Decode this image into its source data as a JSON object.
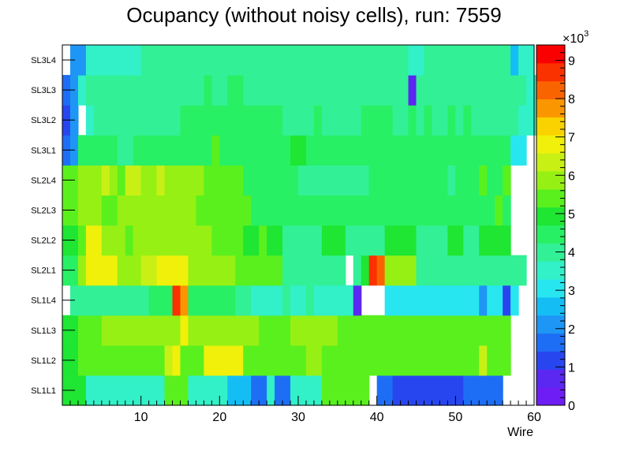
{
  "chart_data": {
    "type": "heatmap",
    "title": "Ocupancy (without noisy cells), run: 7559",
    "xlabel": "Wire",
    "ylabel": "",
    "xlim": [
      0,
      60
    ],
    "x_ticks": [
      10,
      20,
      30,
      40,
      50,
      60
    ],
    "rows": [
      "SL1L1",
      "SL1L2",
      "SL1L3",
      "SL1L4",
      "SL2L1",
      "SL2L2",
      "SL2L3",
      "SL2L4",
      "SL3L1",
      "SL3L2",
      "SL3L3",
      "SL3L4"
    ],
    "colorbar": {
      "min": 0,
      "max": 9400,
      "ticks": [
        0,
        1,
        2,
        3,
        4,
        5,
        6,
        7,
        8,
        9
      ],
      "tick_labels": [
        "0",
        "1",
        "2",
        "3",
        "4",
        "5",
        "6",
        "7",
        "8",
        "9"
      ],
      "exponent_base": "×10",
      "exponent_power": "3"
    },
    "palette": [
      "#6e1ef5",
      "#5a28f0",
      "#2846f0",
      "#1e6ef5",
      "#1e96f5",
      "#14bef5",
      "#28e6f0",
      "#32f0c8",
      "#32f096",
      "#28f064",
      "#1ee632",
      "#5af01e",
      "#96f014",
      "#c8f014",
      "#f0f00a",
      "#fad200",
      "#fa9600",
      "#fa6400",
      "#fa3200",
      "#fa0000"
    ],
    "z": [
      [
        4800,
        4800,
        4800,
        3400,
        3400,
        3400,
        3400,
        3400,
        3400,
        3400,
        3400,
        3400,
        3400,
        5400,
        5400,
        5400,
        3400,
        3400,
        3400,
        3400,
        3400,
        2800,
        2800,
        2800,
        1700,
        1700,
        3400,
        1700,
        1700,
        3400,
        3400,
        3400,
        3400,
        5400,
        5400,
        5400,
        5400,
        5400,
        5400,
        null,
        1700,
        1700,
        1200,
        1200,
        1200,
        1200,
        1200,
        1200,
        1200,
        1200,
        1200,
        1500,
        1500,
        1700,
        1700,
        1700,
        null,
        null,
        null,
        null
      ],
      [
        4800,
        4800,
        5400,
        5400,
        5400,
        5400,
        5400,
        5400,
        5400,
        5400,
        5400,
        5400,
        5400,
        6200,
        6700,
        5400,
        5400,
        5400,
        6700,
        6700,
        6700,
        6700,
        6700,
        5400,
        5400,
        5400,
        5400,
        5400,
        5400,
        5400,
        5400,
        5900,
        5900,
        5400,
        5400,
        5400,
        5400,
        5400,
        5400,
        5400,
        5400,
        5400,
        5400,
        5400,
        5400,
        5400,
        5400,
        5400,
        5400,
        5400,
        5400,
        5400,
        5400,
        6200,
        5400,
        5400,
        5400,
        null,
        null,
        null
      ],
      [
        4800,
        4800,
        5400,
        5400,
        5400,
        5900,
        5900,
        5900,
        5900,
        5900,
        5900,
        5900,
        5900,
        5900,
        5900,
        6900,
        5900,
        5900,
        5900,
        5900,
        5900,
        5900,
        5900,
        5900,
        5900,
        5400,
        5400,
        5400,
        5400,
        5900,
        5900,
        5900,
        5900,
        5900,
        5900,
        5400,
        5400,
        5400,
        5400,
        5400,
        5400,
        5400,
        5400,
        5400,
        5400,
        5400,
        5400,
        5400,
        5400,
        5400,
        5400,
        5400,
        5400,
        5400,
        5400,
        5400,
        5400,
        null,
        null,
        null
      ],
      [
        null,
        4200,
        4200,
        4200,
        4200,
        4200,
        4200,
        4200,
        4200,
        4200,
        4200,
        4600,
        4600,
        4600,
        8700,
        7900,
        4600,
        4600,
        4600,
        4600,
        4600,
        4600,
        4200,
        4200,
        3700,
        3700,
        3700,
        3700,
        4200,
        3700,
        3700,
        4200,
        3700,
        3700,
        3700,
        3700,
        3700,
        800,
        null,
        null,
        null,
        3200,
        3200,
        3200,
        3200,
        3200,
        3200,
        3200,
        3200,
        3200,
        3200,
        3200,
        3200,
        2300,
        3200,
        3200,
        1200,
        3200,
        null,
        null,
        null
      ],
      [
        4600,
        4600,
        5900,
        6900,
        6900,
        6900,
        6900,
        5900,
        5900,
        5900,
        6200,
        6200,
        7000,
        7000,
        7000,
        7000,
        5900,
        5900,
        5900,
        5900,
        5900,
        5900,
        5400,
        5400,
        5400,
        5400,
        5400,
        5400,
        4200,
        4200,
        4200,
        4200,
        4200,
        4200,
        4200,
        4200,
        null,
        4200,
        5100,
        8800,
        8300,
        5900,
        5900,
        5900,
        5900,
        4200,
        4200,
        4200,
        4200,
        4200,
        4200,
        4200,
        4200,
        4200,
        4200,
        4200,
        4200,
        4200,
        4200,
        null,
        null
      ],
      [
        4800,
        5000,
        5400,
        6900,
        6900,
        5900,
        5900,
        5900,
        5400,
        5900,
        5900,
        5900,
        5900,
        5900,
        5900,
        5900,
        5900,
        5900,
        5900,
        5400,
        5400,
        5400,
        5400,
        5000,
        5000,
        5400,
        4800,
        4800,
        4200,
        4200,
        4200,
        4200,
        4200,
        5000,
        5000,
        5000,
        4200,
        4200,
        4200,
        4200,
        4200,
        5000,
        5000,
        5000,
        5000,
        4200,
        4200,
        4200,
        4200,
        5000,
        5000,
        4200,
        4200,
        5000,
        5000,
        5000,
        4800,
        null,
        null,
        null
      ],
      [
        5200,
        5400,
        6000,
        6000,
        6000,
        5400,
        5400,
        5900,
        5900,
        5900,
        5900,
        5900,
        5900,
        5900,
        5900,
        5900,
        5900,
        5400,
        5400,
        5400,
        5400,
        5400,
        5400,
        5400,
        4600,
        4600,
        4600,
        4600,
        4600,
        4600,
        4600,
        4600,
        4600,
        4600,
        4600,
        4600,
        4600,
        4600,
        4600,
        4600,
        4600,
        4600,
        4600,
        4600,
        4600,
        4600,
        4600,
        4600,
        4600,
        4600,
        4600,
        4600,
        4600,
        4600,
        4600,
        5400,
        4600,
        null,
        null,
        null
      ],
      [
        5200,
        5400,
        5900,
        5900,
        5900,
        6200,
        5900,
        5400,
        6200,
        6200,
        5900,
        5900,
        6200,
        5900,
        5900,
        5900,
        5900,
        5900,
        5400,
        5400,
        5400,
        5400,
        5200,
        4600,
        4600,
        4600,
        4600,
        4600,
        4600,
        4600,
        3900,
        3900,
        3900,
        3900,
        3900,
        3900,
        3900,
        3900,
        3900,
        4600,
        4600,
        4600,
        4600,
        4600,
        4600,
        4600,
        4600,
        4600,
        4600,
        3900,
        4600,
        4600,
        4600,
        5400,
        4600,
        4600,
        5200,
        null,
        null,
        null,
        null
      ],
      [
        1700,
        2300,
        4600,
        4600,
        4600,
        4600,
        4600,
        4100,
        4100,
        4600,
        4600,
        4600,
        4600,
        4600,
        4600,
        4600,
        4600,
        4600,
        4600,
        5200,
        4600,
        4600,
        4600,
        4600,
        4600,
        4600,
        4600,
        4600,
        4600,
        5000,
        5000,
        4600,
        4600,
        4600,
        4600,
        4600,
        4600,
        4600,
        4600,
        4600,
        4600,
        4600,
        4600,
        4600,
        4600,
        4600,
        4600,
        4600,
        4600,
        4600,
        4600,
        4600,
        4600,
        4600,
        4600,
        4600,
        4600,
        3200,
        3200,
        null,
        null
      ],
      [
        1200,
        2200,
        null,
        3400,
        3900,
        3900,
        3900,
        3900,
        3900,
        3900,
        3900,
        3900,
        3900,
        3900,
        3900,
        4600,
        4600,
        4600,
        4600,
        4600,
        4600,
        4600,
        4600,
        4600,
        4600,
        4600,
        4600,
        4600,
        4200,
        4200,
        4200,
        4200,
        4600,
        4200,
        4200,
        4200,
        4200,
        4200,
        4600,
        4600,
        4600,
        4600,
        4200,
        4200,
        4600,
        4200,
        4600,
        4200,
        4200,
        4600,
        4200,
        4600,
        4200,
        4200,
        4200,
        4200,
        4200,
        4200,
        3500,
        3500,
        3400
      ],
      [
        1800,
        2200,
        3400,
        3900,
        3900,
        3900,
        3900,
        3900,
        3900,
        3900,
        3900,
        3900,
        3900,
        3900,
        3900,
        3900,
        3900,
        3900,
        4600,
        4200,
        4200,
        4600,
        4600,
        4200,
        4200,
        4200,
        4200,
        4200,
        4200,
        4200,
        4200,
        4200,
        4200,
        4200,
        4200,
        4200,
        4200,
        4200,
        4200,
        4200,
        4200,
        4200,
        4200,
        4200,
        800,
        4200,
        4200,
        4200,
        4200,
        4200,
        4200,
        4200,
        4200,
        4200,
        4200,
        4200,
        4200,
        4200,
        3800,
        3400,
        3400
      ],
      [
        null,
        2200,
        2200,
        3400,
        3400,
        3400,
        3400,
        3400,
        3400,
        3400,
        4200,
        4200,
        4200,
        4200,
        4200,
        4200,
        4200,
        4200,
        4200,
        4200,
        4200,
        4200,
        4200,
        4200,
        4200,
        4200,
        4200,
        4200,
        4200,
        4200,
        4200,
        4200,
        4200,
        4200,
        4200,
        4200,
        4200,
        4200,
        4200,
        4200,
        4200,
        4200,
        4200,
        4200,
        3400,
        3400,
        4200,
        4200,
        4200,
        4200,
        4200,
        4200,
        4200,
        4200,
        4200,
        4200,
        4200,
        2800,
        3400,
        3400,
        null
      ]
    ]
  }
}
